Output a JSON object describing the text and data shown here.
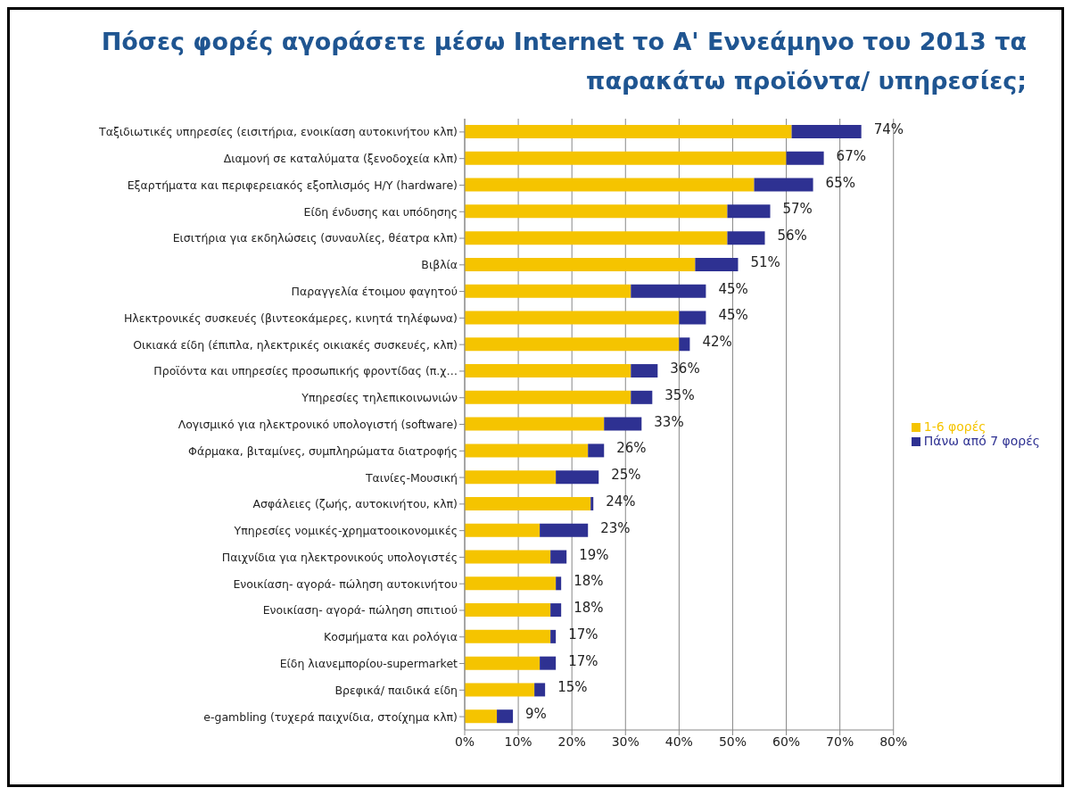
{
  "chart_data": {
    "type": "bar",
    "orientation": "horizontal",
    "stacked": true,
    "title": "Πόσες φορές αγοράσετε μέσω Internet το Α' Εννεάμηνο του 2013 τα παρακάτω προϊόντα/ υπηρεσίες;",
    "categories": [
      "Ταξιδιωτικές υπηρεσίες (εισιτήρια, ενοικίαση αυτοκινήτου κλπ)",
      "Διαμονή σε καταλύματα (ξενοδοχεία κλπ)",
      "Εξαρτήματα και περιφερειακός εξοπλισμός Η/Υ (hardware)",
      "Είδη ένδυσης και υπόδησης",
      "Εισιτήρια για εκδηλώσεις (συναυλίες, θέατρα κλπ)",
      "Βιβλία",
      "Παραγγελία έτοιμου φαγητού",
      "Ηλεκτρονικές συσκευές (βιντεοκάμερες, κινητά τηλέφωνα)",
      "Οικιακά είδη (έπιπλα, ηλεκτρικές οικιακές συσκευές, κλπ)",
      "Προϊόντα και υπηρεσίες προσωπικής φροντίδας (π.χ…",
      "Υπηρεσίες τηλεπικοινωνιών",
      "Λογισμικό για ηλεκτρονικό υπολογιστή (software)",
      "Φάρμακα, βιταμίνες, συμπληρώματα διατροφής",
      "Ταινίες-Μουσική",
      "Ασφάλειες (ζωής, αυτοκινήτου, κλπ)",
      "Υπηρεσίες νομικές-χρηματοοικονομικές",
      "Παιχνίδια για ηλεκτρονικούς υπολογιστές",
      "Ενοικίαση- αγορά- πώληση αυτοκινήτου",
      "Ενοικίαση- αγορά- πώληση σπιτιού",
      "Κοσμήματα και ρολόγια",
      "Είδη λιανεμπορίου-supermarket",
      "Βρεφικά/ παιδικά είδη",
      "e-gambling (τυχερά παιχνίδια, στοίχημα κλπ)"
    ],
    "series": [
      {
        "name": "1-6 φορές",
        "color": "#f5c400",
        "values": [
          61,
          60,
          54,
          49,
          49,
          43,
          31,
          40,
          40,
          31,
          31,
          26,
          23,
          17,
          23.5,
          14,
          16,
          17,
          16,
          16,
          14,
          13,
          6
        ]
      },
      {
        "name": "Πάνω από 7 φορές",
        "color": "#2e3192",
        "values": [
          13,
          7,
          11,
          8,
          7,
          8,
          14,
          5,
          2,
          5,
          4,
          7,
          3,
          8,
          0.5,
          9,
          3,
          1,
          2,
          1,
          3,
          2,
          3
        ]
      }
    ],
    "totals": [
      "74%",
      "67%",
      "65%",
      "57%",
      "56%",
      "51%",
      "45%",
      "45%",
      "42%",
      "36%",
      "35%",
      "33%",
      "26%",
      "25%",
      "24%",
      "23%",
      "19%",
      "18%",
      "18%",
      "17%",
      "17%",
      "15%",
      "9%"
    ],
    "xlim": [
      0,
      80
    ],
    "xticks": [
      {
        "value": 0,
        "label": "0%"
      },
      {
        "value": 10,
        "label": "10%"
      },
      {
        "value": 20,
        "label": "20%"
      },
      {
        "value": 30,
        "label": "30%"
      },
      {
        "value": 40,
        "label": "40%"
      },
      {
        "value": 50,
        "label": "50%"
      },
      {
        "value": 60,
        "label": "60%"
      },
      {
        "value": 70,
        "label": "70%"
      },
      {
        "value": 80,
        "label": "80%"
      }
    ],
    "grid": "x",
    "legend": "right"
  }
}
